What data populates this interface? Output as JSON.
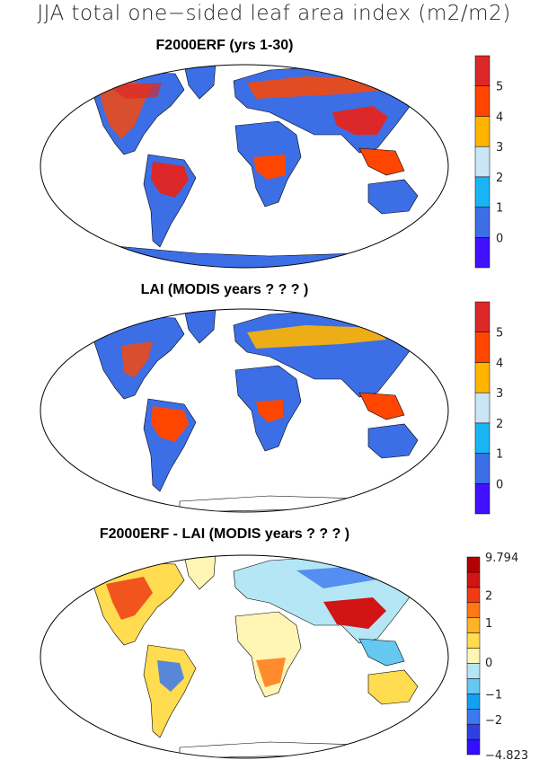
{
  "title": "JJA total one−sided leaf area index (m2/m2)",
  "chart_data": [
    {
      "type": "heatmap",
      "title": "F2000ERF (yrs 1-30)",
      "colorbar": {
        "colors": [
          "#4010ff",
          "#3c6ee6",
          "#19b4f5",
          "#c8e6f5",
          "#ffb400",
          "#ff4600",
          "#dc2828"
        ],
        "boundaries": [
          -1,
          0,
          1,
          2,
          3,
          4,
          5,
          6
        ],
        "tick_labels": [
          "0",
          "1",
          "2",
          "3",
          "4",
          "5"
        ],
        "tick_values": [
          0,
          1,
          2,
          3,
          4,
          5
        ]
      }
    },
    {
      "type": "heatmap",
      "title": "LAI (MODIS years ? ? ? )",
      "colorbar": {
        "colors": [
          "#4010ff",
          "#3c6ee6",
          "#19b4f5",
          "#c8e6f5",
          "#ffb400",
          "#ff4600",
          "#dc2828"
        ],
        "boundaries": [
          -1,
          0,
          1,
          2,
          3,
          4,
          5,
          6
        ],
        "tick_labels": [
          "0",
          "1",
          "2",
          "3",
          "4",
          "5"
        ],
        "tick_values": [
          0,
          1,
          2,
          3,
          4,
          5
        ]
      }
    },
    {
      "type": "heatmap",
      "title": "F2000ERF - LAI (MODIS years ? ? ? )",
      "colorbar": {
        "colors": [
          "#3010ff",
          "#3040e0",
          "#3c78f0",
          "#14a0f0",
          "#64c8f0",
          "#b4e6f5",
          "#fff5b4",
          "#ffdc50",
          "#ffb428",
          "#ff7814",
          "#f03c14",
          "#d21414",
          "#b40000"
        ],
        "tick_labels": [
          "9.794",
          "2",
          "1",
          "0",
          "−1",
          "−2",
          "−4.823"
        ],
        "range": [
          -4.823,
          9.794
        ]
      }
    }
  ]
}
